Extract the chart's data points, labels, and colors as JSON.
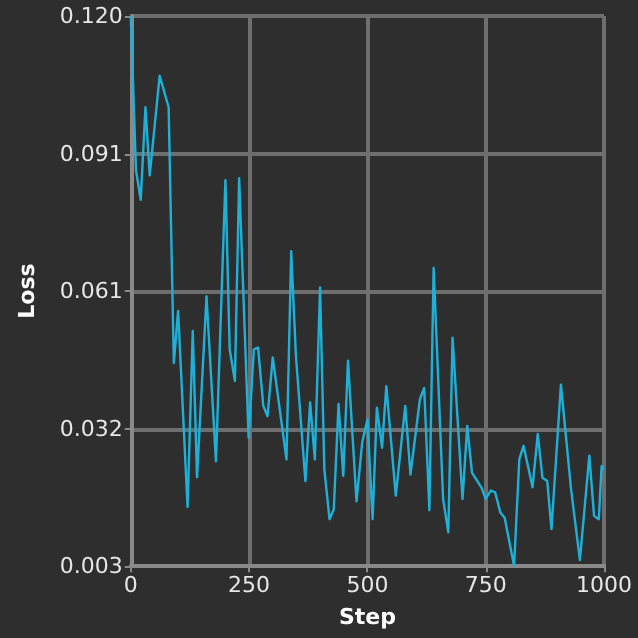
{
  "chart_data": {
    "type": "line",
    "xlabel": "Step",
    "ylabel": "Loss",
    "xlim": [
      0,
      1000
    ],
    "xticks": [
      0,
      250,
      500,
      750,
      1000
    ],
    "ylim": [
      0.003,
      0.12
    ],
    "yticks": [
      {
        "value": 0.003,
        "label": "0.003"
      },
      {
        "value": 0.03225,
        "label": "0.032"
      },
      {
        "value": 0.0615,
        "label": "0.061"
      },
      {
        "value": 0.09075,
        "label": "0.091"
      },
      {
        "value": 0.12,
        "label": "0.120"
      }
    ],
    "grid": true,
    "marker": "none",
    "line_style": "solid",
    "series": [
      {
        "color": "#1fb0d8",
        "x": [
          0,
          11,
          21,
          31,
          40,
          61,
          80,
          91,
          100,
          120,
          131,
          140,
          160,
          180,
          200,
          209,
          220,
          229,
          249,
          260,
          269,
          280,
          289,
          300,
          329,
          339,
          349,
          369,
          379,
          389,
          400,
          409,
          420,
          429,
          439,
          449,
          459,
          477,
          489,
          500,
          511,
          520,
          531,
          540,
          560,
          580,
          591,
          611,
          620,
          631,
          640,
          660,
          671,
          680,
          701,
          711,
          721,
          741,
          750,
          761,
          770,
          781,
          790,
          810,
          821,
          830,
          849,
          860,
          870,
          880,
          889,
          909,
          930,
          949,
          969,
          979,
          989,
          995,
          1000
        ],
        "values": [
          0.12,
          0.0872,
          0.0809,
          0.1006,
          0.0861,
          0.1073,
          0.1006,
          0.0462,
          0.0573,
          0.0156,
          0.053,
          0.0219,
          0.0604,
          0.0253,
          0.0851,
          0.0491,
          0.0424,
          0.0855,
          0.0303,
          0.0491,
          0.0495,
          0.0371,
          0.0349,
          0.0474,
          0.0257,
          0.07,
          0.0477,
          0.0211,
          0.0378,
          0.0257,
          0.0623,
          0.0236,
          0.013,
          0.0151,
          0.0375,
          0.0222,
          0.0467,
          0.0168,
          0.0293,
          0.0342,
          0.013,
          0.0367,
          0.0282,
          0.0413,
          0.018,
          0.0371,
          0.0225,
          0.0385,
          0.0409,
          0.0149,
          0.0664,
          0.0173,
          0.0102,
          0.0516,
          0.0173,
          0.0328,
          0.0229,
          0.0197,
          0.0173,
          0.0191,
          0.0187,
          0.0144,
          0.0133,
          0.0031,
          0.0257,
          0.0286,
          0.0198,
          0.0311,
          0.0218,
          0.0211,
          0.0109,
          0.0416,
          0.0197,
          0.0043,
          0.0265,
          0.0137,
          0.013,
          0.0243,
          0.0236
        ]
      }
    ]
  }
}
